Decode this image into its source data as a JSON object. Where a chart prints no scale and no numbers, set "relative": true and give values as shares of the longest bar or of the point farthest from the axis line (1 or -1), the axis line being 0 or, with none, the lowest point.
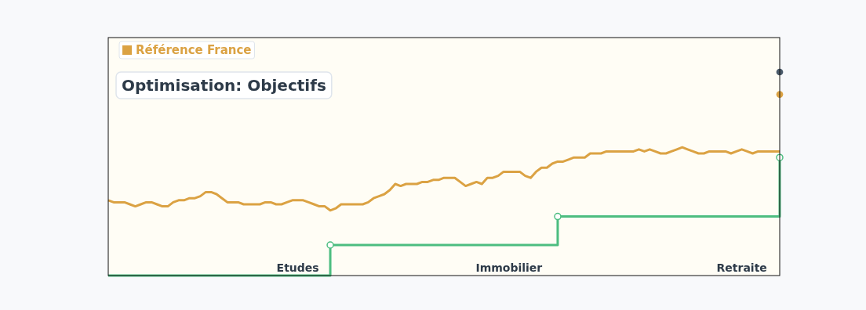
{
  "chart_data": {
    "type": "line",
    "title": "Optimisation: Objectifs",
    "relative": true,
    "legend": "top left",
    "categories": [
      null,
      null,
      null,
      null,
      null,
      null,
      null,
      null,
      null,
      null,
      null,
      null,
      null,
      null,
      null,
      null,
      null,
      null,
      null,
      null,
      null,
      null,
      null,
      null,
      null,
      null,
      null,
      null,
      null,
      null,
      null,
      null,
      null,
      null,
      null,
      "Etudes",
      null,
      null,
      null,
      null,
      null,
      null,
      null,
      null,
      null,
      null,
      null,
      null,
      null,
      null,
      null,
      null,
      null,
      null,
      null,
      null,
      null,
      null,
      null,
      null,
      null,
      null,
      null,
      null,
      null,
      null,
      null,
      null,
      null,
      null,
      null,
      null,
      null,
      null,
      "Immobilier",
      null,
      null,
      null,
      null,
      null,
      null,
      null,
      null,
      null,
      null,
      null,
      null,
      null,
      null,
      null,
      null,
      null,
      null,
      null,
      null,
      null,
      null,
      null,
      null,
      null,
      null,
      null,
      null,
      null,
      null,
      null,
      null,
      null,
      null,
      null,
      null,
      null,
      null,
      null,
      null,
      null,
      null,
      "Retraite",
      null,
      null,
      null,
      null,
      null,
      null,
      null
    ],
    "series": [
      {
        "name": "Référence France",
        "color": "#dba243",
        "values": [
          0.37,
          0.36,
          0.36,
          0.36,
          0.35,
          0.34,
          0.35,
          0.36,
          0.36,
          0.35,
          0.34,
          0.34,
          0.36,
          0.37,
          0.37,
          0.38,
          0.38,
          0.39,
          0.41,
          0.41,
          0.4,
          0.38,
          0.36,
          0.36,
          0.36,
          0.35,
          0.35,
          0.35,
          0.35,
          0.36,
          0.36,
          0.35,
          0.35,
          0.36,
          0.37,
          0.37,
          0.37,
          0.36,
          0.35,
          0.34,
          0.34,
          0.32,
          0.33,
          0.35,
          0.35,
          0.35,
          0.35,
          0.35,
          0.36,
          0.38,
          0.39,
          0.4,
          0.42,
          0.45,
          0.44,
          0.45,
          0.45,
          0.45,
          0.46,
          0.46,
          0.47,
          0.47,
          0.48,
          0.48,
          0.48,
          0.46,
          0.44,
          0.45,
          0.46,
          0.45,
          0.48,
          0.48,
          0.49,
          0.51,
          0.51,
          0.51,
          0.51,
          0.49,
          0.48,
          0.51,
          0.53,
          0.53,
          0.55,
          0.56,
          0.56,
          0.57,
          0.58,
          0.58,
          0.58,
          0.6,
          0.6,
          0.6,
          0.61,
          0.61,
          0.61,
          0.61,
          0.61,
          0.61,
          0.62,
          0.61,
          0.62,
          0.61,
          0.6,
          0.6,
          0.61,
          0.62,
          0.63,
          0.62,
          0.61,
          0.6,
          0.6,
          0.61,
          0.61,
          0.61,
          0.61,
          0.6,
          0.61,
          0.62,
          0.61,
          0.6,
          0.61,
          0.61,
          0.61,
          0.61,
          0.61
        ]
      },
      {
        "type": "scatter",
        "color": "#4cbd80",
        "marker": "circle",
        "values": [
          null,
          null,
          null,
          null,
          null,
          null,
          null,
          null,
          null,
          null,
          null,
          null,
          null,
          null,
          null,
          null,
          null,
          null,
          null,
          null,
          null,
          null,
          null,
          null,
          null,
          null,
          null,
          null,
          null,
          null,
          null,
          null,
          null,
          null,
          null,
          null,
          null,
          null,
          null,
          null,
          null,
          0.15,
          null,
          null,
          null,
          null,
          null,
          null,
          null,
          null,
          null,
          null,
          null,
          null,
          null,
          null,
          null,
          null,
          null,
          null,
          null,
          null,
          null,
          null,
          null,
          null,
          null,
          null,
          null,
          null,
          null,
          null,
          null,
          null,
          null,
          null,
          null,
          null,
          null,
          null,
          null,
          null,
          null,
          0.29,
          null,
          null,
          null,
          null,
          null,
          null,
          null,
          null,
          null,
          null,
          null,
          null,
          null,
          null,
          null,
          null,
          null,
          null,
          null,
          null,
          null,
          null,
          null,
          null,
          null,
          null,
          null,
          null,
          null,
          null,
          null,
          null,
          null,
          null,
          null,
          null,
          null,
          null,
          null,
          null,
          0.58
        ]
      },
      {
        "type": "step",
        "color": "#4cbd80",
        "values": [
          0,
          0,
          0,
          0,
          0,
          0,
          0,
          0,
          0,
          0,
          0,
          0,
          0,
          0,
          0,
          0,
          0,
          0,
          0,
          0,
          0,
          0,
          0,
          0,
          0,
          0,
          0,
          0,
          0,
          0,
          0,
          0,
          0,
          0,
          0,
          0,
          0,
          0,
          0,
          0,
          0,
          0.15,
          0.15,
          0.15,
          0.15,
          0.15,
          0.15,
          0.15,
          0.15,
          0.15,
          0.15,
          0.15,
          0.15,
          0.15,
          0.15,
          0.15,
          0.15,
          0.15,
          0.15,
          0.15,
          0.15,
          0.15,
          0.15,
          0.15,
          0.15,
          0.15,
          0.15,
          0.15,
          0.15,
          0.15,
          0.15,
          0.15,
          0.15,
          0.15,
          0.15,
          0.15,
          0.15,
          0.15,
          0.15,
          0.15,
          0.15,
          0.15,
          0.15,
          0.29,
          0.29,
          0.29,
          0.29,
          0.29,
          0.29,
          0.29,
          0.29,
          0.29,
          0.29,
          0.29,
          0.29,
          0.29,
          0.29,
          0.29,
          0.29,
          0.29,
          0.29,
          0.29,
          0.29,
          0.29,
          0.29,
          0.29,
          0.29,
          0.29,
          0.29,
          0.29,
          0.29,
          0.29,
          0.29,
          0.29,
          0.29,
          0.29,
          0.29,
          0.29,
          0.29,
          0.29,
          0.29,
          0.29,
          0.29,
          0.29,
          0.58
        ]
      },
      {
        "type": "scatter",
        "color": "#4a5a6a",
        "marker": "circle",
        "values": [
          null,
          null,
          null,
          null,
          null,
          null,
          null,
          null,
          null,
          null,
          null,
          null,
          null,
          null,
          null,
          null,
          null,
          null,
          null,
          null,
          null,
          null,
          null,
          null,
          null,
          null,
          null,
          null,
          null,
          null,
          null,
          null,
          null,
          null,
          null,
          null,
          null,
          null,
          null,
          null,
          null,
          null,
          null,
          null,
          null,
          null,
          null,
          null,
          null,
          null,
          null,
          null,
          null,
          null,
          null,
          null,
          null,
          null,
          null,
          null,
          null,
          null,
          null,
          null,
          null,
          null,
          null,
          null,
          null,
          null,
          null,
          null,
          null,
          null,
          null,
          null,
          null,
          null,
          null,
          null,
          null,
          null,
          null,
          null,
          null,
          null,
          null,
          null,
          null,
          null,
          null,
          null,
          null,
          null,
          null,
          null,
          null,
          null,
          null,
          null,
          null,
          null,
          null,
          null,
          null,
          null,
          null,
          null,
          null,
          null,
          null,
          null,
          null,
          null,
          null,
          null,
          null,
          null,
          null,
          null,
          null,
          null,
          null,
          null,
          1
        ]
      },
      {
        "type": "scatter",
        "color": "#dba243",
        "marker": "circle",
        "values": [
          null,
          null,
          null,
          null,
          null,
          null,
          null,
          null,
          null,
          null,
          null,
          null,
          null,
          null,
          null,
          null,
          null,
          null,
          null,
          null,
          null,
          null,
          null,
          null,
          null,
          null,
          null,
          null,
          null,
          null,
          null,
          null,
          null,
          null,
          null,
          null,
          null,
          null,
          null,
          null,
          null,
          null,
          null,
          null,
          null,
          null,
          null,
          null,
          null,
          null,
          null,
          null,
          null,
          null,
          null,
          null,
          null,
          null,
          null,
          null,
          null,
          null,
          null,
          null,
          null,
          null,
          null,
          null,
          null,
          null,
          null,
          null,
          null,
          null,
          null,
          null,
          null,
          null,
          null,
          null,
          null,
          null,
          null,
          null,
          null,
          null,
          null,
          null,
          null,
          null,
          null,
          null,
          null,
          null,
          null,
          null,
          null,
          null,
          null,
          null,
          null,
          null,
          null,
          null,
          null,
          null,
          null,
          null,
          null,
          null,
          null,
          null,
          null,
          null,
          null,
          null,
          null,
          null,
          null,
          null,
          null,
          null,
          null,
          null,
          0.89
        ]
      }
    ]
  }
}
